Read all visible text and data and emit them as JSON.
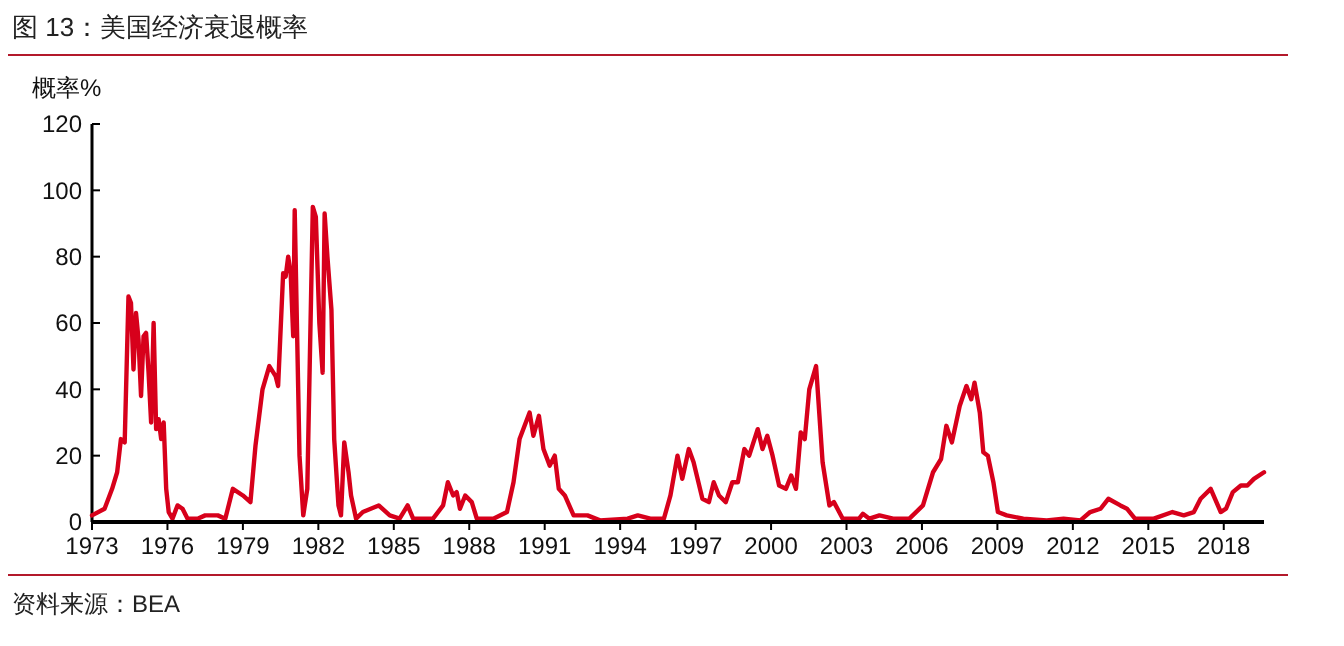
{
  "chart_data": {
    "type": "line",
    "title": "图 13：美国经济衰退概率",
    "ylabel": "概率%",
    "annotations": [
      "资料来源：BEA"
    ],
    "xlim": [
      1973,
      2019.6
    ],
    "xticks": [
      1973,
      1976,
      1979,
      1982,
      1985,
      1988,
      1991,
      1994,
      1997,
      2000,
      2003,
      2006,
      2009,
      2012,
      2015,
      2018
    ],
    "ylim": [
      0,
      120
    ],
    "yticks": [
      0,
      20,
      40,
      60,
      80,
      100,
      120
    ],
    "grid": false,
    "marker": "none",
    "line_style": "solid",
    "series": [
      {
        "color": "#d7001b",
        "x": [
          1973,
          1973.5,
          1973.8,
          1974,
          1974.15,
          1974.3,
          1974.45,
          1974.55,
          1974.65,
          1974.75,
          1974.85,
          1974.95,
          1975.05,
          1975.15,
          1975.25,
          1975.35,
          1975.45,
          1975.55,
          1975.65,
          1975.75,
          1975.85,
          1975.95,
          1976.05,
          1976.2,
          1976.4,
          1976.6,
          1976.8,
          1977.2,
          1977.5,
          1978,
          1978.3,
          1978.6,
          1979,
          1979.3,
          1979.5,
          1979.78,
          1980.05,
          1980.3,
          1980.4,
          1980.6,
          1980.7,
          1980.8,
          1980.9,
          1981,
          1981.06,
          1981.16,
          1981.25,
          1981.4,
          1981.56,
          1981.78,
          1981.9,
          1982.04,
          1982.17,
          1982.25,
          1982.36,
          1982.52,
          1982.63,
          1982.8,
          1982.9,
          1983.03,
          1983.2,
          1983.3,
          1983.5,
          1983.77,
          1984.4,
          1984.84,
          1985.23,
          1985.55,
          1985.77,
          1986.56,
          1986.96,
          1987.15,
          1987.36,
          1987.5,
          1987.63,
          1987.84,
          1988.1,
          1988.3,
          1988.96,
          1989.5,
          1989.76,
          1990,
          1990.4,
          1990.55,
          1990.77,
          1990.95,
          1991.2,
          1991.4,
          1991.56,
          1991.8,
          1992.15,
          1992.7,
          1993.2,
          1994.3,
          1994.7,
          1995.2,
          1995.74,
          1996,
          1996.28,
          1996.47,
          1996.73,
          1996.92,
          1997.27,
          1997.53,
          1997.72,
          1997.93,
          1998.2,
          1998.46,
          1998.68,
          1998.94,
          1999.13,
          1999.47,
          1999.66,
          1999.85,
          2000.06,
          2000.32,
          2000.59,
          2000.8,
          2000.99,
          2001.18,
          2001.34,
          2001.52,
          2001.79,
          2002.05,
          2002.32,
          2002.5,
          2002.85,
          2003.5,
          2003.65,
          2003.91,
          2004.31,
          2004.85,
          2005.5,
          2006.04,
          2006.44,
          2006.76,
          2006.97,
          2007.19,
          2007.5,
          2007.77,
          2007.96,
          2008.09,
          2008.3,
          2008.44,
          2008.62,
          2008.84,
          2009.02,
          2009.37,
          2010.03,
          2010.96,
          2011.63,
          2012.3,
          2012.69,
          2013.1,
          2013.41,
          2013.89,
          2014.15,
          2014.47,
          2015.22,
          2015.96,
          2016.41,
          2016.81,
          2017.08,
          2017.48,
          2017.88,
          2018.09,
          2018.36,
          2018.68,
          2018.94,
          2019.2,
          2019.6
        ],
        "values": [
          2,
          4,
          10,
          15,
          25,
          24,
          68,
          66,
          46,
          63,
          55,
          38,
          56,
          57,
          45,
          30,
          60,
          28,
          31,
          25,
          30,
          10,
          3,
          1,
          5,
          4,
          1,
          1,
          2,
          2,
          1,
          10,
          8,
          6,
          23,
          40,
          47,
          44,
          41,
          75,
          74,
          80,
          75,
          56,
          94,
          55,
          20,
          2,
          10,
          95,
          92,
          60,
          45,
          93,
          80,
          64,
          25,
          5,
          2,
          24,
          15,
          8,
          1,
          3,
          5,
          2,
          1,
          5,
          1,
          1,
          5,
          12,
          8,
          9,
          4,
          8,
          6,
          1,
          1,
          3,
          12,
          25,
          33,
          26,
          32,
          22,
          17,
          20,
          10,
          8,
          2,
          2,
          0.5,
          1,
          2,
          1,
          1,
          8,
          20,
          13,
          22,
          18,
          7,
          6,
          12,
          8,
          6,
          12,
          12,
          22,
          20,
          28,
          22,
          26,
          20,
          11,
          10,
          14,
          10,
          27,
          25,
          40,
          47,
          18,
          5,
          6,
          1,
          1,
          2.5,
          1,
          2,
          1,
          1,
          5,
          15,
          19,
          29,
          24,
          35,
          41,
          37,
          42,
          33,
          21,
          20,
          12,
          3,
          2,
          1,
          0.5,
          1,
          0.5,
          3,
          4,
          7,
          5,
          4,
          1,
          1,
          3,
          2,
          3,
          7,
          10,
          3,
          4,
          9,
          11,
          11,
          13,
          15
        ]
      }
    ]
  }
}
